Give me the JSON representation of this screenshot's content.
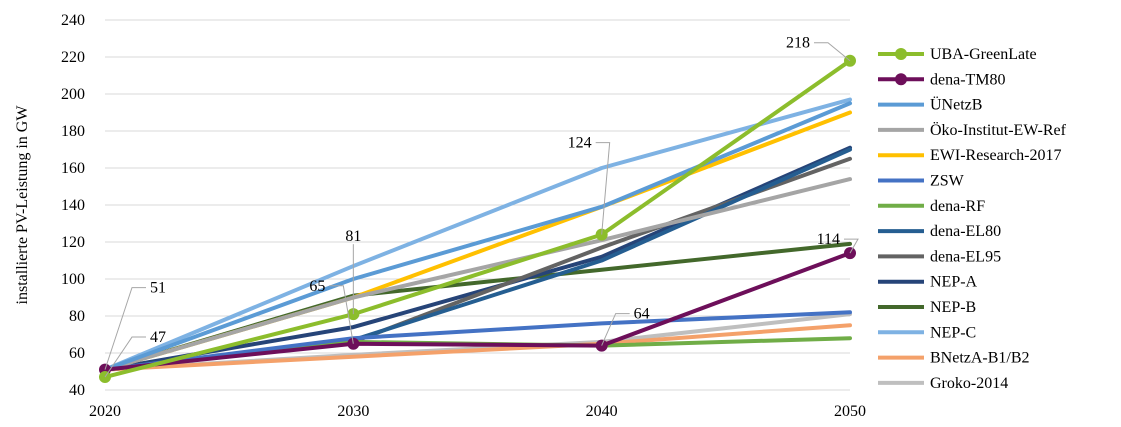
{
  "chart_data": {
    "type": "line",
    "title": "",
    "xlabel": "",
    "ylabel": "installierte PV-Leistung in GW",
    "x": [
      2020,
      2030,
      2040,
      2050
    ],
    "xticks": [
      "2020",
      "2030",
      "2040",
      "2050"
    ],
    "yticks": [
      "40",
      "60",
      "80",
      "100",
      "120",
      "140",
      "160",
      "180",
      "200",
      "220",
      "240"
    ],
    "ylim": [
      40,
      240
    ],
    "grid": true,
    "legend_position": "right",
    "series": [
      {
        "name": "UBA-GreenLate",
        "color": "#8cbd2c",
        "markers": true,
        "values": [
          47,
          81,
          124,
          218
        ]
      },
      {
        "name": "dena-TM80",
        "color": "#6d0f5a",
        "markers": true,
        "values": [
          51,
          65,
          64,
          114
        ]
      },
      {
        "name": "ÜNetzB",
        "color": "#5b9bd5",
        "markers": false,
        "values": [
          51,
          100,
          139,
          195
        ]
      },
      {
        "name": "Öko-Institut-EW-Ref",
        "color": "#a5a5a5",
        "markers": false,
        "values": [
          51,
          90,
          121,
          154
        ]
      },
      {
        "name": "EWI-Research-2017",
        "color": "#ffc000",
        "markers": false,
        "values": [
          51,
          90,
          139,
          190
        ]
      },
      {
        "name": "ZSW",
        "color": "#4472c4",
        "markers": false,
        "values": [
          51,
          68,
          76,
          82
        ]
      },
      {
        "name": "dena-RF",
        "color": "#70ad47",
        "markers": false,
        "values": [
          51,
          66,
          64,
          68
        ]
      },
      {
        "name": "dena-EL80",
        "color": "#255e91",
        "markers": false,
        "values": [
          51,
          67,
          110,
          170
        ]
      },
      {
        "name": "dena-EL95",
        "color": "#636363",
        "markers": false,
        "values": [
          51,
          66,
          117,
          165
        ]
      },
      {
        "name": "NEP-A",
        "color": "#264478",
        "markers": false,
        "values": [
          51,
          74,
          112,
          171
        ]
      },
      {
        "name": "NEP-B",
        "color": "#43682b",
        "markers": false,
        "values": [
          51,
          91,
          105,
          119
        ]
      },
      {
        "name": "NEP-C",
        "color": "#7eb2e3",
        "markers": false,
        "values": [
          51,
          107,
          160,
          197
        ]
      },
      {
        "name": "BNetzA-B1/B2",
        "color": "#f4a16a",
        "markers": false,
        "values": [
          51,
          58,
          65,
          75
        ]
      },
      {
        "name": "Groko-2014",
        "color": "#bfbfbf",
        "markers": false,
        "values": [
          51,
          59,
          66,
          81
        ]
      }
    ],
    "annotations": [
      {
        "text": "51",
        "series": "dena-TM80",
        "x": 2020
      },
      {
        "text": "47",
        "series": "UBA-GreenLate",
        "x": 2020
      },
      {
        "text": "65",
        "series": "dena-TM80",
        "x": 2030
      },
      {
        "text": "81",
        "series": "UBA-GreenLate",
        "x": 2030
      },
      {
        "text": "124",
        "series": "UBA-GreenLate",
        "x": 2040
      },
      {
        "text": "64",
        "series": "dena-TM80",
        "x": 2040
      },
      {
        "text": "218",
        "series": "UBA-GreenLate",
        "x": 2050
      },
      {
        "text": "114",
        "series": "dena-TM80",
        "x": 2050
      }
    ]
  }
}
